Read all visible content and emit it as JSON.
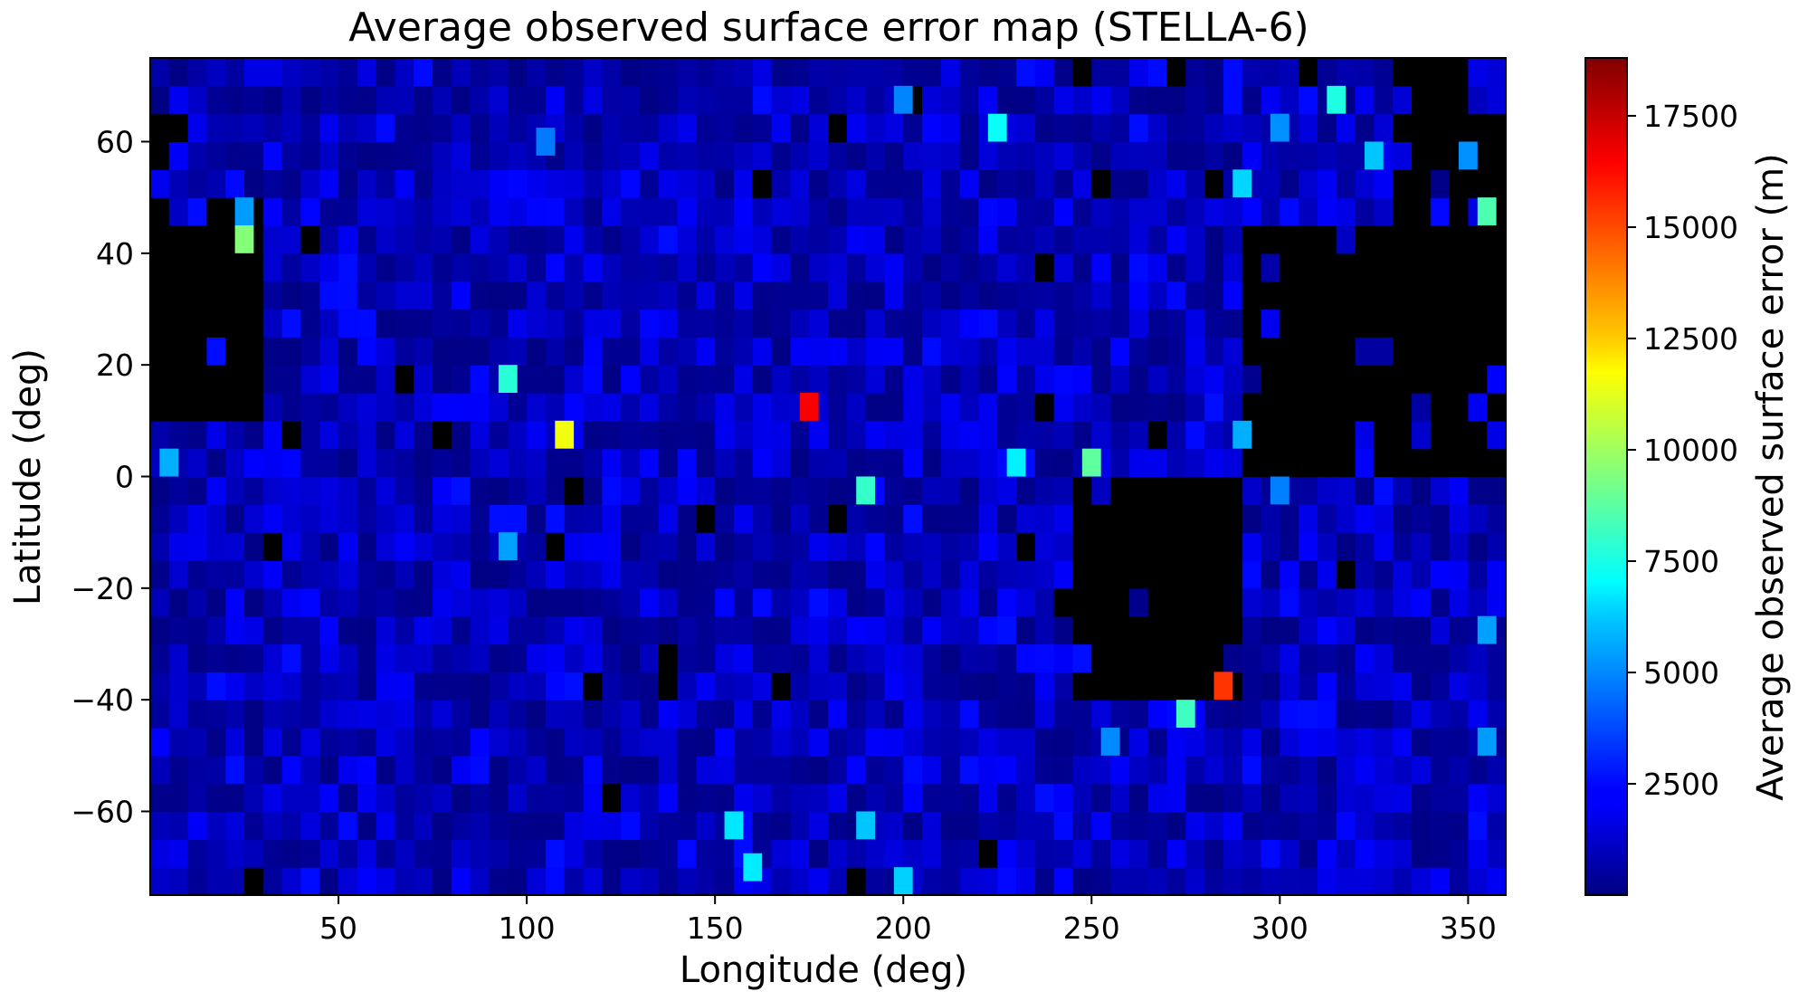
{
  "chart_data": {
    "type": "heatmap",
    "title": "Average observed surface error map (STELLA-6)",
    "xlabel": "Longitude (deg)",
    "ylabel": "Latitude (deg)",
    "colorbar_label": "Average observed surface error (m)",
    "colormap": "jet",
    "no_data_color": "#000000",
    "xlim": [
      0,
      360
    ],
    "ylim": [
      -75,
      75
    ],
    "value_range": [
      0,
      18800
    ],
    "cell_size_deg": [
      5,
      5
    ],
    "xticks": [
      50,
      100,
      150,
      200,
      250,
      300,
      350
    ],
    "xtick_labels": [
      "50",
      "100",
      "150",
      "200",
      "250",
      "300",
      "350"
    ],
    "yticks": [
      60,
      40,
      20,
      0,
      -20,
      -40,
      -60
    ],
    "ytick_labels": [
      "60",
      "40",
      "20",
      "0",
      "−20",
      "−40",
      "−60"
    ],
    "colorbar_ticks": [
      2500,
      5000,
      7500,
      10000,
      12500,
      15000,
      17500
    ],
    "colorbar_tick_labels": [
      "2500",
      "5000",
      "7500",
      "10000",
      "12500",
      "15000",
      "17500"
    ],
    "background_value_range": [
      100,
      2600
    ],
    "no_data_regions": [
      {
        "lon": [
          0,
          30
        ],
        "lat": [
          10,
          50
        ]
      },
      {
        "lon": [
          0,
          10
        ],
        "lat": [
          55,
          65
        ]
      },
      {
        "lon": [
          290,
          360
        ],
        "lat": [
          0,
          45
        ]
      },
      {
        "lon": [
          330,
          360
        ],
        "lat": [
          45,
          65
        ]
      },
      {
        "lon": [
          330,
          350
        ],
        "lat": [
          65,
          75
        ]
      },
      {
        "lon": [
          245,
          290
        ],
        "lat": [
          -40,
          0
        ]
      }
    ],
    "hotspots": [
      {
        "lon": 175,
        "lat": 12.5,
        "value": 16500
      },
      {
        "lon": 285,
        "lat": -37.5,
        "value": 15500
      },
      {
        "lon": 110,
        "lat": 7.5,
        "value": 11500
      },
      {
        "lon": 25,
        "lat": 42.5,
        "value": 9500
      },
      {
        "lon": 355,
        "lat": 47.5,
        "value": 8500
      },
      {
        "lon": 250,
        "lat": 2.5,
        "value": 8800
      },
      {
        "lon": 275,
        "lat": -42.5,
        "value": 8200
      },
      {
        "lon": 190,
        "lat": -2.5,
        "value": 8000
      },
      {
        "lon": 95,
        "lat": 17.5,
        "value": 7800
      },
      {
        "lon": 315,
        "lat": 67.5,
        "value": 7600
      },
      {
        "lon": 230,
        "lat": 2.5,
        "value": 6800
      },
      {
        "lon": 225,
        "lat": 62.5,
        "value": 7200
      },
      {
        "lon": 155,
        "lat": -62.5,
        "value": 6600
      },
      {
        "lon": 160,
        "lat": -70,
        "value": 6700
      },
      {
        "lon": 200,
        "lat": -72.5,
        "value": 6200
      },
      {
        "lon": 190,
        "lat": -62.5,
        "value": 6000
      },
      {
        "lon": 325,
        "lat": 57.5,
        "value": 6000
      },
      {
        "lon": 5,
        "lat": 2.5,
        "value": 5600
      },
      {
        "lon": 290,
        "lat": 52.5,
        "value": 6300
      },
      {
        "lon": 290,
        "lat": 7.5,
        "value": 5600
      },
      {
        "lon": 95,
        "lat": -12.5,
        "value": 5300
      },
      {
        "lon": 355,
        "lat": -27.5,
        "value": 5300
      },
      {
        "lon": 355,
        "lat": -47.5,
        "value": 5200
      },
      {
        "lon": 25,
        "lat": 47.5,
        "value": 5200
      },
      {
        "lon": 255,
        "lat": -47.5,
        "value": 4900
      },
      {
        "lon": 350,
        "lat": 57.5,
        "value": 5000
      },
      {
        "lon": 300,
        "lat": 62.5,
        "value": 5000
      },
      {
        "lon": 200,
        "lat": 67.5,
        "value": 4800
      },
      {
        "lon": 300,
        "lat": -2.5,
        "value": 4700
      },
      {
        "lon": 105,
        "lat": 60,
        "value": 4600
      }
    ]
  }
}
